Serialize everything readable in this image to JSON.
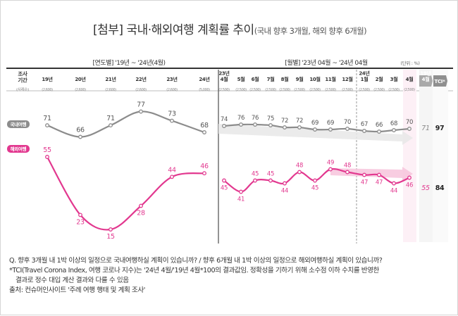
{
  "title": {
    "main": "[첨부] 국내·해외여행 계획률 추이",
    "sub": "(국내 향후 3개월, 해외 향후 6개월)"
  },
  "headers": {
    "survey_period": "조사\n기간",
    "sample": "(사례수)",
    "annual": "[연도별] '19년 ~ '24년(4월)",
    "monthly": "[월별] '23년 04월 ~ '24년 04월",
    "unit": "(단위 : %)"
  },
  "chart_data": {
    "type": "line",
    "categories": [
      {
        "label": "19년",
        "n": "(2,600)"
      },
      {
        "label": "20년",
        "n": "(2,600)"
      },
      {
        "label": "21년",
        "n": "(2,600)"
      },
      {
        "label": "22년",
        "n": "(2,600)"
      },
      {
        "label": "23년",
        "n": "(2,600)"
      },
      {
        "label": "24년",
        "n": "(5,000)"
      },
      {
        "label": "23년\n4월",
        "n": "(2,500)"
      },
      {
        "label": "5월",
        "n": "(2,500)"
      },
      {
        "label": "6월",
        "n": "(2,500)"
      },
      {
        "label": "7월",
        "n": "(2,500)"
      },
      {
        "label": "8월",
        "n": "(2,500)"
      },
      {
        "label": "9월",
        "n": "(2,500)"
      },
      {
        "label": "10월",
        "n": "(2,500)"
      },
      {
        "label": "11월",
        "n": "(2,500)"
      },
      {
        "label": "12월",
        "n": "(2,500)"
      },
      {
        "label": "24년\n1월",
        "n": "(2,500)"
      },
      {
        "label": "2월",
        "n": "(2,500)"
      },
      {
        "label": "3월",
        "n": "(2,500)"
      },
      {
        "label": "4월",
        "n": "(2,500)"
      }
    ],
    "series": [
      {
        "name": "국내여행",
        "color": "#8c8c8c",
        "annual": [
          71,
          66,
          71,
          77,
          73,
          68
        ],
        "monthly": [
          74,
          76,
          76,
          75,
          72,
          72,
          69,
          69,
          70,
          67,
          66,
          68,
          70
        ],
        "base_2019_04": "71",
        "tci": "97"
      },
      {
        "name": "해외여행",
        "color": "#e2388f",
        "annual": [
          55,
          23,
          15,
          28,
          44,
          46
        ],
        "monthly": [
          45,
          41,
          45,
          45,
          44,
          48,
          45,
          49,
          48,
          47,
          47,
          44,
          46
        ],
        "base_2019_04": "55",
        "tci": "84"
      }
    ],
    "extra_columns": [
      {
        "label": "19년\n4월"
      },
      {
        "label": "TCI*"
      }
    ],
    "trend_arrows": true
  },
  "notes": {
    "q": "Q. 향후 3개월 내 1박 이상의 일정으로 국내여행하실 계획이 있습니까? / 향후 6개월 내 1박 이상의 일정으로 해외여행하실 계획이 있습니까?",
    "tci": "*TCI(Travel Corona Index, 여행 코로나 지수)는 '24년 4월/'19년 4월*100의 결과값임. 정확성을 기하기 위해 소수점 이하 수치를 반영한",
    "tci2": "결과로 정수 대입 계산 결과와 다를 수 있음",
    "source": "출처: 컨슈머인사이트 '주례 여행 행태 및 계획 조사'"
  }
}
